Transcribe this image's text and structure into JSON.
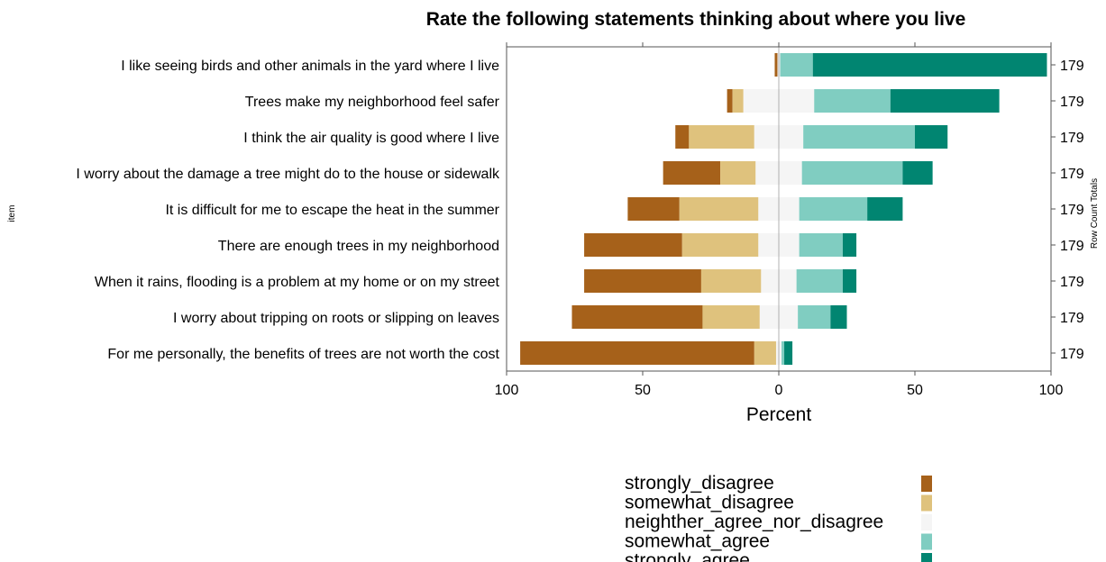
{
  "chart_data": {
    "type": "bar",
    "subtype": "diverging-stacked-likert",
    "title": "Rate the following statements thinking about where you live",
    "xlabel": "Percent",
    "ylabel": "item",
    "right_label": "Row Count Totals",
    "xlim": [
      -100,
      100
    ],
    "xticks": [
      -100,
      -50,
      0,
      50,
      100
    ],
    "xtick_labels": [
      "100",
      "50",
      "0",
      "50",
      "100"
    ],
    "grid": false,
    "legend_position": "bottom",
    "categories": [
      "I like seeing birds and other animals in the yard where I live",
      "Trees make my neighborhood feel safer",
      "I think the air quality is good where I live",
      "I worry about the damage a tree might do to the house or sidewalk",
      "It is difficult for me to escape the heat in the summer",
      "There are enough trees in my neighborhood",
      "When it rains, flooding is a problem at my home or on my street",
      "I worry about tripping on roots or slipping on leaves",
      "For me personally, the benefits of trees are not worth the cost"
    ],
    "row_totals": [
      "179",
      "179",
      "179",
      "179",
      "179",
      "179",
      "179",
      "179",
      "179"
    ],
    "series": [
      {
        "name": "strongly_disagree",
        "color": "#a6611a",
        "values": [
          1,
          2,
          5,
          21,
          19,
          36,
          43,
          48,
          86
        ]
      },
      {
        "name": "somewhat_disagree",
        "color": "#dfc27d",
        "values": [
          0,
          4,
          24,
          13,
          29,
          28,
          22,
          21,
          8
        ]
      },
      {
        "name": "neighther_agree_nor_disagree",
        "color": "#f5f5f5",
        "values": [
          1,
          26,
          18,
          17,
          15,
          15,
          13,
          14,
          2
        ]
      },
      {
        "name": "somewhat_agree",
        "color": "#80cdc1",
        "values": [
          12,
          28,
          41,
          37,
          25,
          16,
          17,
          12,
          1
        ]
      },
      {
        "name": "strongly_agree",
        "color": "#018571",
        "values": [
          86,
          40,
          12,
          11,
          13,
          5,
          5,
          6,
          3
        ]
      }
    ]
  }
}
